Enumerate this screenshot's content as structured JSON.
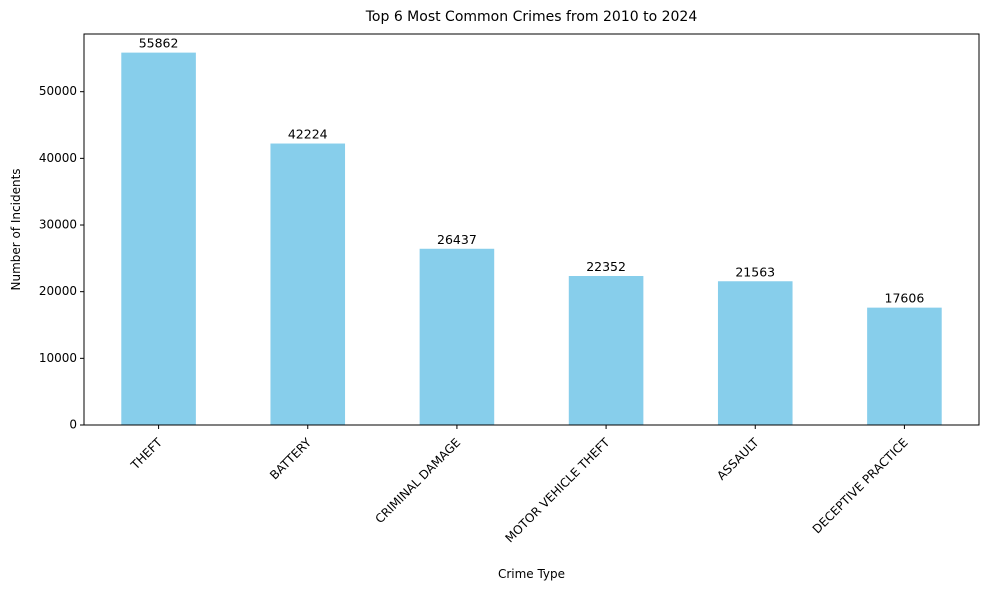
{
  "chart_data": {
    "type": "bar",
    "title": "Top 6 Most Common Crimes from 2010 to 2024",
    "xlabel": "Crime Type",
    "ylabel": "Number of Incidents",
    "categories": [
      "THEFT",
      "BATTERY",
      "CRIMINAL DAMAGE",
      "MOTOR VEHICLE THEFT",
      "ASSAULT",
      "DECEPTIVE PRACTICE"
    ],
    "values": [
      55862,
      42224,
      26437,
      22352,
      21563,
      17606
    ],
    "data_labels": [
      "55862",
      "42224",
      "26437",
      "22352",
      "21563",
      "17606"
    ],
    "yticks": [
      0,
      10000,
      20000,
      30000,
      40000,
      50000
    ],
    "ytick_labels": [
      "0",
      "10000",
      "20000",
      "30000",
      "40000",
      "50000"
    ],
    "ylim": [
      0,
      58655
    ],
    "grid": false,
    "bar_color": "#87CEEB"
  }
}
